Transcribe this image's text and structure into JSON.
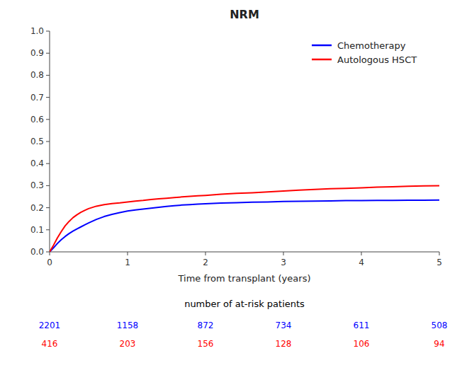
{
  "chart_data": {
    "type": "line",
    "title": "NRM",
    "x_label": "Time from transplant (years)",
    "at_risk_label": "number of at-risk patients",
    "x": [
      0.0,
      0.05,
      0.1,
      0.15,
      0.2,
      0.25,
      0.3,
      0.35,
      0.4,
      0.45,
      0.5,
      0.6,
      0.7,
      0.8,
      0.9,
      1.0,
      1.1,
      1.2,
      1.3,
      1.4,
      1.5,
      1.6,
      1.7,
      1.8,
      1.9,
      2.0,
      2.2,
      2.4,
      2.6,
      2.8,
      3.0,
      3.2,
      3.4,
      3.6,
      3.8,
      4.0,
      4.2,
      4.4,
      4.6,
      4.8,
      5.0
    ],
    "series": [
      {
        "name": "Chemotherapy",
        "color": "#0000FF",
        "values": [
          0.0,
          0.018,
          0.038,
          0.055,
          0.07,
          0.083,
          0.094,
          0.104,
          0.113,
          0.122,
          0.131,
          0.147,
          0.16,
          0.17,
          0.178,
          0.185,
          0.19,
          0.194,
          0.198,
          0.202,
          0.206,
          0.209,
          0.212,
          0.214,
          0.216,
          0.218,
          0.221,
          0.223,
          0.225,
          0.226,
          0.228,
          0.229,
          0.23,
          0.231,
          0.232,
          0.232,
          0.233,
          0.233,
          0.234,
          0.234,
          0.235
        ],
        "at_risk": [
          2201,
          1158,
          872,
          734,
          611,
          508
        ]
      },
      {
        "name": "Autologous HSCT",
        "color": "#FF0000",
        "values": [
          0.0,
          0.03,
          0.063,
          0.092,
          0.118,
          0.138,
          0.155,
          0.168,
          0.179,
          0.188,
          0.196,
          0.207,
          0.214,
          0.219,
          0.222,
          0.226,
          0.23,
          0.233,
          0.237,
          0.24,
          0.243,
          0.246,
          0.249,
          0.252,
          0.254,
          0.256,
          0.261,
          0.265,
          0.268,
          0.272,
          0.276,
          0.28,
          0.283,
          0.286,
          0.288,
          0.29,
          0.293,
          0.295,
          0.297,
          0.299,
          0.3
        ],
        "at_risk": [
          416,
          203,
          156,
          128,
          106,
          94
        ]
      }
    ],
    "at_risk_x": [
      0,
      1,
      2,
      3,
      4,
      5
    ],
    "xlim": [
      0,
      5
    ],
    "ylim": [
      0,
      1.0
    ],
    "xticks": [
      0,
      1,
      2,
      3,
      4,
      5
    ],
    "yticks": [
      {
        "value": 0.0,
        "label": "0.0"
      },
      0.1,
      0.2,
      0.3,
      0.4,
      0.5,
      0.6,
      0.7,
      0.8,
      0.9,
      {
        "value": 1.0,
        "label": "1.0"
      }
    ],
    "grid": false,
    "legend": "upper right"
  }
}
